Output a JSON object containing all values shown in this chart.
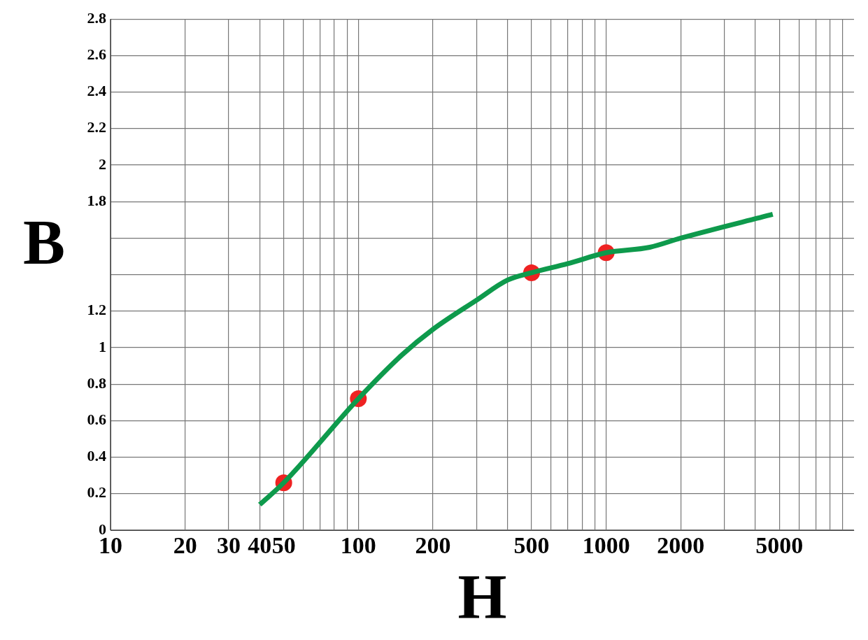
{
  "chart_data": {
    "type": "line",
    "xlabel": "H",
    "ylabel": "B",
    "log": "x",
    "grid": true,
    "xlim": [
      10,
      10000
    ],
    "ylim": [
      0,
      2.8
    ],
    "xticks": [
      10,
      20,
      30,
      40,
      50,
      {
        "value": 60,
        "label": null
      },
      {
        "value": 70,
        "label": null
      },
      {
        "value": 80,
        "label": null
      },
      {
        "value": 90,
        "label": null
      },
      100,
      200,
      {
        "value": 300,
        "label": null
      },
      {
        "value": 400,
        "label": null
      },
      500,
      {
        "value": 600,
        "label": null
      },
      {
        "value": 700,
        "label": null
      },
      {
        "value": 800,
        "label": null
      },
      {
        "value": 900,
        "label": null
      },
      1000,
      2000,
      {
        "value": 3000,
        "label": null
      },
      {
        "value": 4000,
        "label": null
      },
      5000,
      {
        "value": 6000,
        "label": null
      },
      {
        "value": 7000,
        "label": null
      },
      {
        "value": 8000,
        "label": null
      },
      {
        "value": 9000,
        "label": null
      }
    ],
    "yticks": [
      0,
      0.2,
      0.4,
      0.6,
      0.8,
      1,
      1.2,
      {
        "value": 1.4,
        "label": null
      },
      {
        "value": 1.6,
        "label": null
      },
      1.8,
      2,
      2.2,
      2.4,
      2.6,
      2.8
    ],
    "series": [
      {
        "type": "line",
        "color": "#0e9a4c",
        "marker": "none",
        "x": [
          40,
          50,
          100,
          150,
          200,
          300,
          400,
          500,
          700,
          1000,
          1500,
          2000,
          4700
        ],
        "values": [
          0.14,
          0.26,
          0.72,
          0.96,
          1.1,
          1.26,
          1.37,
          1.41,
          1.46,
          1.52,
          1.55,
          1.6,
          1.73
        ]
      },
      {
        "type": "scatter",
        "color": "#ee2222",
        "marker": "circle",
        "x": [
          50,
          100,
          500,
          1000
        ],
        "values": [
          0.26,
          0.72,
          1.41,
          1.52
        ]
      }
    ]
  }
}
